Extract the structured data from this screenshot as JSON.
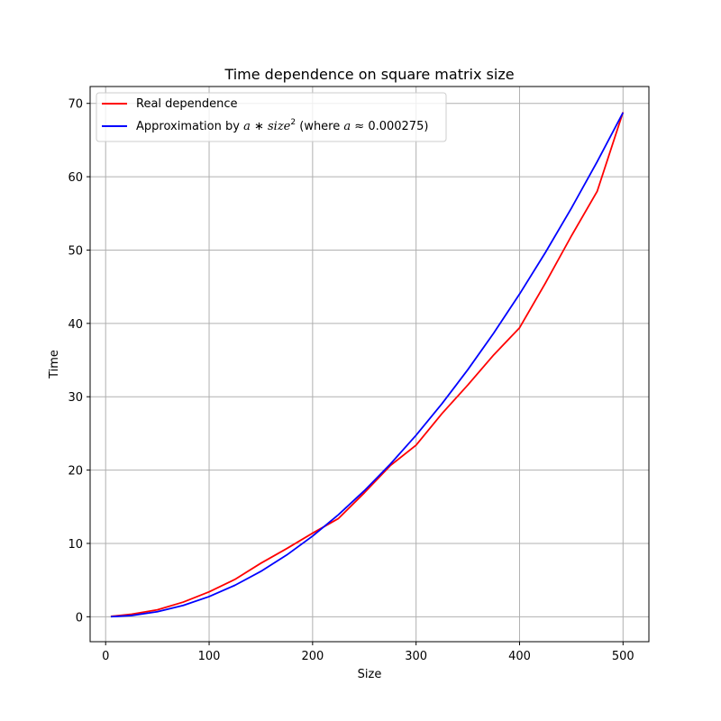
{
  "chart_data": {
    "type": "line",
    "title": "Time dependence on square matrix size",
    "xlabel": "Size",
    "ylabel": "Time",
    "xlim": [
      -15,
      525
    ],
    "ylim": [
      -3.4,
      72.3
    ],
    "xticks": [
      0,
      100,
      200,
      300,
      400,
      500
    ],
    "yticks": [
      0,
      10,
      20,
      30,
      40,
      50,
      60,
      70
    ],
    "grid": true,
    "legend_position": "top-left",
    "series": [
      {
        "name": "Real dependence",
        "color": "#ff0000",
        "x": [
          5,
          25,
          50,
          75,
          100,
          125,
          150,
          175,
          200,
          225,
          250,
          275,
          300,
          325,
          350,
          375,
          400,
          425,
          450,
          475,
          500
        ],
        "y": [
          0.05,
          0.35,
          0.95,
          2.0,
          3.4,
          5.1,
          7.3,
          9.3,
          11.4,
          13.4,
          16.9,
          20.6,
          23.4,
          27.7,
          31.6,
          35.7,
          39.4,
          45.5,
          51.9,
          58.0,
          68.8
        ]
      },
      {
        "name": "Approximation by a * size² (where a ≈ 0.000275)",
        "legend_parts": {
          "prefix": "Approximation by ",
          "a": "a",
          "op": " ∗ ",
          "size": "size",
          "exp": "2",
          "mid": " (where ",
          "a2": "a",
          "approx": " ≈ ",
          "value": "0.000275)"
        },
        "color": "#0000ff",
        "coefficient": 0.000275,
        "x": [
          5,
          25,
          50,
          75,
          100,
          125,
          150,
          175,
          200,
          225,
          250,
          275,
          300,
          325,
          350,
          375,
          400,
          425,
          450,
          475,
          500
        ]
      }
    ]
  }
}
